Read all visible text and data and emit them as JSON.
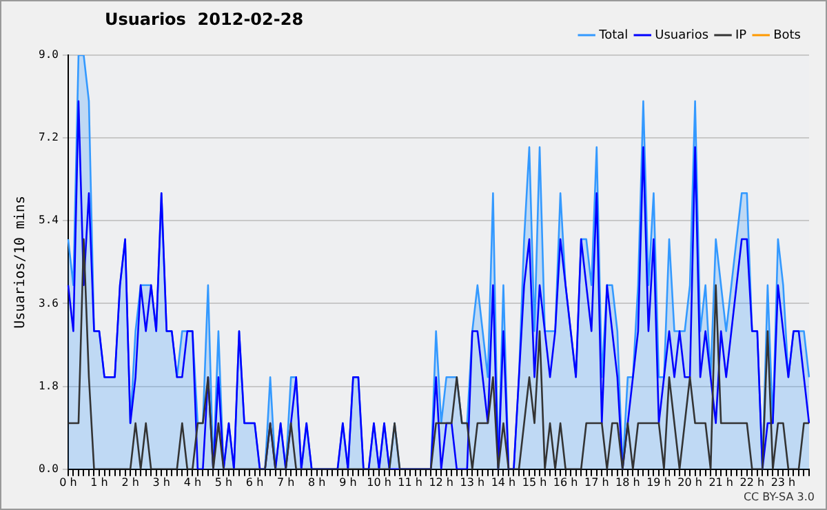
{
  "chart_data": {
    "type": "line",
    "title": "Usuarios  2012-02-28",
    "ylabel": "Usuarios/10 mins",
    "categories": [
      "0 h",
      null,
      null,
      null,
      null,
      null,
      "1 h",
      null,
      null,
      null,
      null,
      null,
      "2 h",
      null,
      null,
      null,
      null,
      null,
      "3 h",
      null,
      null,
      null,
      null,
      null,
      "4 h",
      null,
      null,
      null,
      null,
      null,
      "5 h",
      null,
      null,
      null,
      null,
      null,
      "6 h",
      null,
      null,
      null,
      null,
      null,
      "7 h",
      null,
      null,
      null,
      null,
      null,
      "8 h",
      null,
      null,
      null,
      null,
      null,
      "9 h",
      null,
      null,
      null,
      null,
      null,
      "10 h",
      null,
      null,
      null,
      null,
      null,
      "11 h",
      null,
      null,
      null,
      null,
      null,
      "12 h",
      null,
      null,
      null,
      null,
      null,
      "13 h",
      null,
      null,
      null,
      null,
      null,
      "14 h",
      null,
      null,
      null,
      null,
      null,
      "15 h",
      null,
      null,
      null,
      null,
      null,
      "16 h",
      null,
      null,
      null,
      null,
      null,
      "17 h",
      null,
      null,
      null,
      null,
      null,
      "18 h",
      null,
      null,
      null,
      null,
      null,
      "19 h",
      null,
      null,
      null,
      null,
      null,
      "20 h",
      null,
      null,
      null,
      null,
      null,
      "21 h",
      null,
      null,
      null,
      null,
      null,
      "22 h",
      null,
      null,
      null,
      null,
      null,
      "23 h",
      null,
      null,
      null,
      null,
      null
    ],
    "series": [
      {
        "name": "Total",
        "type": "area",
        "color": "#3399ff",
        "values": [
          5,
          4,
          9,
          9,
          8,
          3,
          3,
          2,
          2,
          2,
          4,
          5,
          1,
          3,
          4,
          4,
          4,
          3,
          6,
          3,
          3,
          2,
          3,
          3,
          3,
          1,
          1,
          4,
          0,
          3,
          0,
          1,
          0,
          3,
          1,
          1,
          1,
          0,
          0,
          2,
          0,
          1,
          0,
          2,
          2,
          0,
          1,
          0,
          0,
          0,
          0,
          0,
          0,
          1,
          0,
          2,
          2,
          0,
          0,
          1,
          0,
          1,
          0,
          1,
          0,
          0,
          0,
          0,
          0,
          0,
          0,
          3,
          1,
          2,
          2,
          2,
          1,
          1,
          3,
          4,
          3,
          2,
          6,
          0,
          4,
          0,
          0,
          2,
          5,
          7,
          3,
          7,
          3,
          3,
          3,
          6,
          4,
          3,
          2,
          5,
          5,
          4,
          7,
          2,
          4,
          4,
          3,
          0,
          2,
          2,
          4,
          8,
          4,
          6,
          2,
          2,
          5,
          3,
          3,
          3,
          4,
          8,
          3,
          4,
          2,
          5,
          4,
          3,
          4,
          5,
          6,
          6,
          3,
          3,
          0,
          4,
          1,
          5,
          4,
          2,
          3,
          3,
          3,
          2
        ]
      },
      {
        "name": "Usuarios",
        "type": "line",
        "color": "#0000ff",
        "values": [
          4,
          3,
          8,
          4,
          6,
          3,
          3,
          2,
          2,
          2,
          4,
          5,
          1,
          2,
          4,
          3,
          4,
          3,
          6,
          3,
          3,
          2,
          2,
          3,
          3,
          0,
          0,
          2,
          0,
          2,
          0,
          1,
          0,
          3,
          1,
          1,
          1,
          0,
          0,
          1,
          0,
          1,
          0,
          1,
          2,
          0,
          1,
          0,
          0,
          0,
          0,
          0,
          0,
          1,
          0,
          2,
          2,
          0,
          0,
          1,
          0,
          1,
          0,
          0,
          0,
          0,
          0,
          0,
          0,
          0,
          0,
          2,
          0,
          1,
          1,
          0,
          0,
          0,
          3,
          3,
          2,
          1,
          4,
          0,
          3,
          0,
          0,
          2,
          4,
          5,
          2,
          4,
          3,
          2,
          3,
          5,
          4,
          3,
          2,
          5,
          4,
          3,
          6,
          1,
          4,
          3,
          2,
          0,
          1,
          2,
          3,
          7,
          3,
          5,
          1,
          2,
          3,
          2,
          3,
          2,
          2,
          7,
          2,
          3,
          2,
          1,
          3,
          2,
          3,
          4,
          5,
          5,
          3,
          3,
          0,
          1,
          1,
          4,
          3,
          2,
          3,
          3,
          2,
          1
        ]
      },
      {
        "name": "IP",
        "type": "line",
        "color": "#333333",
        "values": [
          1,
          1,
          1,
          5,
          2,
          0,
          0,
          0,
          0,
          0,
          0,
          0,
          0,
          1,
          0,
          1,
          0,
          0,
          0,
          0,
          0,
          0,
          1,
          0,
          0,
          1,
          1,
          2,
          0,
          1,
          0,
          0,
          0,
          0,
          0,
          0,
          0,
          0,
          0,
          1,
          0,
          0,
          0,
          1,
          0,
          0,
          0,
          0,
          0,
          0,
          0,
          0,
          0,
          0,
          0,
          0,
          0,
          0,
          0,
          0,
          0,
          0,
          0,
          1,
          0,
          0,
          0,
          0,
          0,
          0,
          0,
          1,
          1,
          1,
          1,
          2,
          1,
          1,
          0,
          1,
          1,
          1,
          2,
          0,
          1,
          0,
          0,
          0,
          1,
          2,
          1,
          3,
          0,
          1,
          0,
          1,
          0,
          0,
          0,
          0,
          1,
          1,
          1,
          1,
          0,
          1,
          1,
          0,
          1,
          0,
          1,
          1,
          1,
          1,
          1,
          0,
          2,
          1,
          0,
          1,
          2,
          1,
          1,
          1,
          0,
          4,
          1,
          1,
          1,
          1,
          1,
          1,
          0,
          0,
          0,
          3,
          0,
          1,
          1,
          0,
          0,
          0,
          1,
          1
        ]
      },
      {
        "name": "Bots",
        "type": "line",
        "color": "#ff9900",
        "values": [
          null,
          null,
          null,
          null,
          null,
          null,
          null,
          null,
          null,
          null,
          null,
          null,
          null,
          null,
          null,
          null,
          null,
          null,
          null,
          null,
          null,
          null,
          null,
          null,
          null,
          null,
          null,
          null,
          null,
          null,
          null,
          null,
          null,
          null,
          null,
          null,
          null,
          null,
          null,
          null,
          null,
          null,
          null,
          null,
          null,
          null,
          null,
          null,
          null,
          null,
          null,
          null,
          null,
          null,
          null,
          null,
          null,
          null,
          null,
          null,
          null,
          null,
          null,
          null,
          null,
          null,
          null,
          null,
          null,
          null,
          null,
          null,
          null,
          null,
          null,
          null,
          null,
          null,
          null,
          null,
          null,
          null,
          null,
          null,
          null,
          null,
          null,
          null,
          null,
          null,
          null,
          null,
          null,
          null,
          null,
          null,
          null,
          null,
          null,
          null,
          null,
          null,
          null,
          null,
          null,
          null,
          null,
          null,
          null,
          null,
          null,
          null,
          null,
          null,
          null,
          null,
          null,
          null,
          null,
          null,
          null,
          null,
          null,
          null,
          null,
          null,
          null,
          null,
          null,
          null,
          null,
          null,
          null,
          null,
          null,
          null,
          null,
          null,
          null,
          null,
          null,
          null,
          null,
          null
        ]
      }
    ],
    "ylim": [
      0,
      9
    ],
    "yticks": [
      {
        "value": 0,
        "label": "0.0"
      },
      1.8,
      3.6,
      5.4,
      7.2,
      {
        "value": 9,
        "label": "9.0"
      }
    ],
    "grid": "y",
    "legend": "top right",
    "marker": "none",
    "line_style": "solid",
    "annotations": [
      "CC BY-SA 3.0"
    ]
  }
}
